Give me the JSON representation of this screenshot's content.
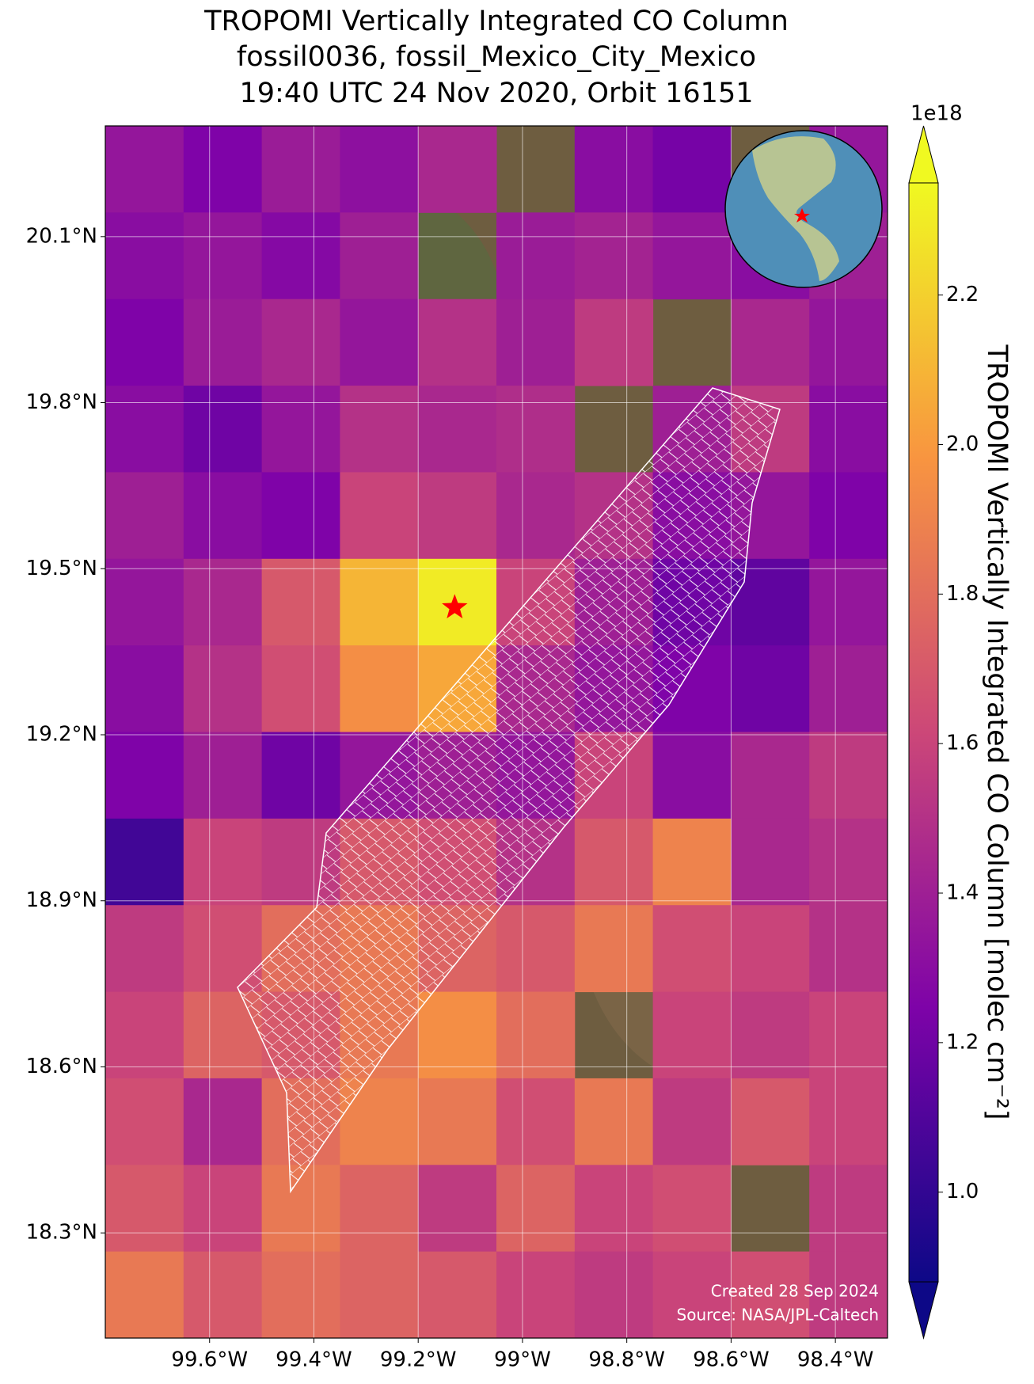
{
  "chart_data": {
    "type": "map-grid",
    "title": [
      "TROPOMI Vertically Integrated CO Column",
      "fossil0036, fossil_Mexico_City_Mexico",
      "19:40 UTC 24 Nov 2020, Orbit 16151"
    ],
    "xlim": [
      -99.8,
      -98.3
    ],
    "ylim": [
      18.11,
      20.3
    ],
    "xticks": [
      {
        "value": -99.6,
        "label": "99.6°W"
      },
      {
        "value": -99.4,
        "label": "99.4°W"
      },
      {
        "value": -99.2,
        "label": "99.2°W"
      },
      {
        "value": -99.0,
        "label": "99°W"
      },
      {
        "value": -98.8,
        "label": "98.8°W"
      },
      {
        "value": -98.6,
        "label": "98.6°W"
      },
      {
        "value": -98.4,
        "label": "98.4°W"
      }
    ],
    "yticks": [
      {
        "value": 20.1,
        "label": "20.1°N"
      },
      {
        "value": 19.8,
        "label": "19.8°N"
      },
      {
        "value": 19.5,
        "label": "19.5°N"
      },
      {
        "value": 19.2,
        "label": "19.2°N"
      },
      {
        "value": 18.9,
        "label": "18.9°N"
      },
      {
        "value": 18.6,
        "label": "18.6°N"
      },
      {
        "value": 18.3,
        "label": "18.3°N"
      }
    ],
    "grid": true,
    "colormap": "plasma",
    "values": [
      [
        1.35,
        1.25,
        1.38,
        1.32,
        1.45,
        null,
        1.3,
        1.22,
        null,
        1.35
      ],
      [
        1.3,
        1.35,
        1.28,
        1.4,
        null,
        1.38,
        1.42,
        1.35,
        1.3,
        1.4
      ],
      [
        1.25,
        1.38,
        1.45,
        1.35,
        1.5,
        1.4,
        1.55,
        null,
        1.45,
        1.35
      ],
      [
        1.3,
        1.2,
        1.35,
        1.5,
        1.45,
        1.48,
        null,
        1.4,
        1.55,
        1.3
      ],
      [
        1.4,
        1.3,
        1.25,
        1.6,
        1.55,
        1.45,
        1.5,
        1.3,
        1.35,
        1.25
      ],
      [
        1.35,
        1.45,
        1.7,
        2.1,
        2.3,
        1.6,
        1.4,
        1.2,
        1.15,
        1.35
      ],
      [
        1.3,
        1.5,
        1.65,
        1.95,
        2.05,
        1.45,
        1.35,
        1.25,
        1.2,
        1.4
      ],
      [
        1.25,
        1.4,
        1.2,
        1.35,
        1.4,
        1.35,
        1.6,
        1.3,
        1.45,
        1.55
      ],
      [
        1.05,
        1.6,
        1.55,
        1.7,
        1.65,
        1.5,
        1.7,
        1.9,
        1.45,
        1.5
      ],
      [
        1.55,
        1.65,
        1.8,
        1.85,
        1.75,
        1.7,
        1.85,
        1.65,
        1.6,
        1.5
      ],
      [
        1.6,
        1.75,
        1.7,
        1.85,
        1.95,
        1.8,
        null,
        1.6,
        1.55,
        1.6
      ],
      [
        1.65,
        1.45,
        1.8,
        1.9,
        1.85,
        1.65,
        1.85,
        1.55,
        1.7,
        1.6
      ],
      [
        1.7,
        1.6,
        1.85,
        1.75,
        1.55,
        1.75,
        1.6,
        1.65,
        null,
        1.55
      ],
      [
        1.85,
        1.7,
        1.8,
        1.75,
        1.7,
        1.6,
        1.55,
        1.6,
        1.65,
        1.55
      ]
    ],
    "vlim": [
      0.88,
      2.35
    ],
    "colorbar_ticks": [
      {
        "value": 1.0,
        "label": "1.0"
      },
      1.2,
      1.4,
      1.6,
      1.8,
      {
        "value": 2.0,
        "label": "2.0"
      },
      2.2
    ],
    "colorbar_exponent": "1e18",
    "colorbar_label": "TROPOMI Vertically Integrated CO Column [molec cm⁻²]",
    "marker": {
      "lon": -99.13,
      "lat": 19.43,
      "color": "#ff0000"
    },
    "credits": [
      "Created 28 Sep 2024",
      "Source: NASA/JPL-Caltech"
    ]
  }
}
